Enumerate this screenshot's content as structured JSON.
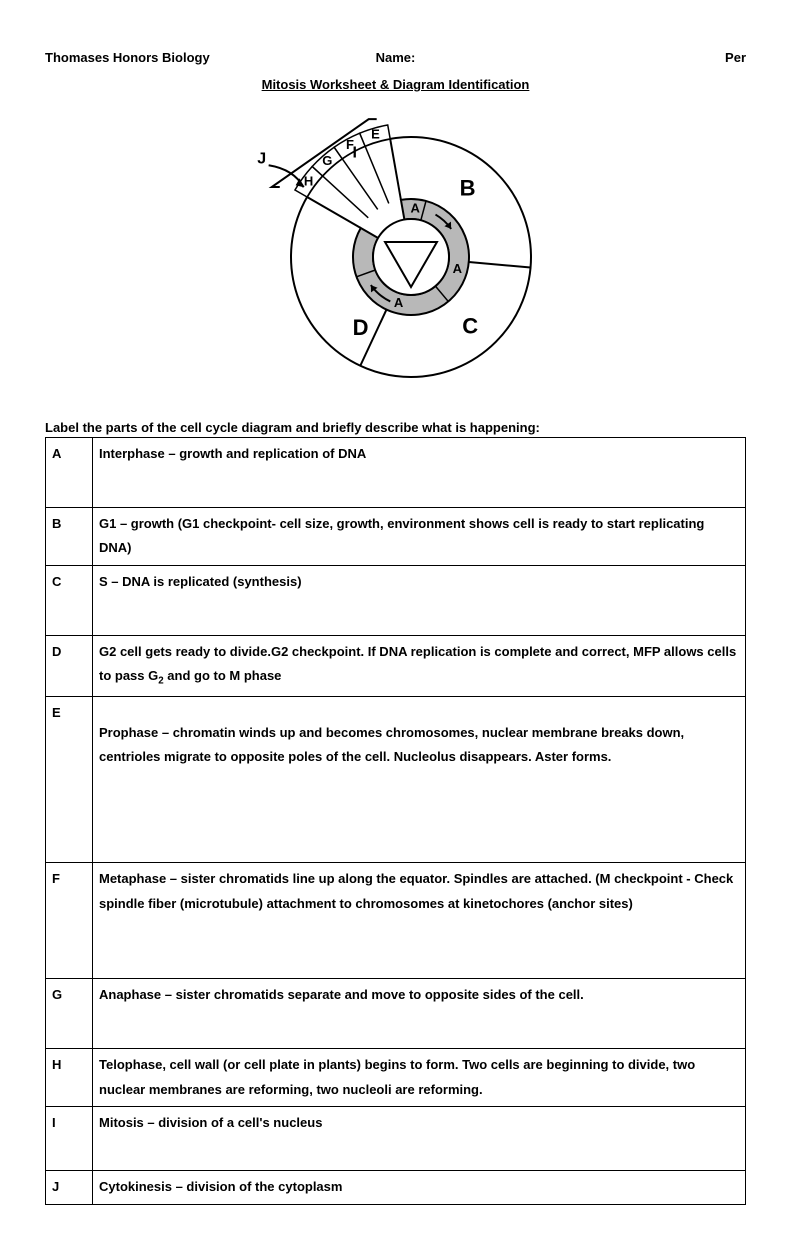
{
  "header": {
    "left": "Thomases Honors Biology",
    "center": "Name:",
    "right": "Per"
  },
  "title": "Mitosis Worksheet & Diagram Identification",
  "diagram": {
    "outer_labels": {
      "J": "J",
      "B": "B",
      "C": "C",
      "D": "D",
      "I": "I"
    },
    "inner_labels": {
      "H": "H",
      "G": "G",
      "F": "F",
      "E": "E"
    },
    "ring_labels": {
      "A1": "A",
      "A2": "A",
      "A3": "A"
    },
    "colors": {
      "stroke": "#000000",
      "ring_fill": "#b8b8b8",
      "background": "#ffffff"
    },
    "font_family": "Arial",
    "label_font_size_large": 22,
    "label_font_size_med": 16,
    "label_font_size_small": 13,
    "stroke_width": 2
  },
  "instruction": "Label the parts of the cell cycle diagram and briefly describe what is happening:",
  "rows": [
    {
      "letter": "A",
      "text": "Interphase – growth and replication of DNA"
    },
    {
      "letter": "B",
      "text": "G1 – growth (G1 checkpoint- cell size, growth, environment shows cell is ready to start replicating DNA)"
    },
    {
      "letter": "C",
      "text": "S – DNA is replicated (synthesis)"
    },
    {
      "letter": "D",
      "text": "G2 cell gets ready to divide.G2 checkpoint. If DNA replication is complete and correct, MFP  allows cells to pass G₂ and go to M phase"
    },
    {
      "letter": "E",
      "text": "Prophase – chromatin winds up and becomes chromosomes, nuclear membrane breaks down, centrioles migrate to opposite poles of the cell. Nucleolus disappears. Aster forms."
    },
    {
      "letter": "F",
      "text": "Metaphase – sister chromatids line up along the equator. Spindles are attached. (M checkpoint - Check spindle fiber (microtubule) attachment to chromosomes at kinetochores (anchor sites)"
    },
    {
      "letter": "G",
      "text": "Anaphase – sister chromatids separate and move to opposite sides of the cell."
    },
    {
      "letter": "H",
      "text": "Telophase, cell wall (or cell plate in plants) begins to form. Two cells are beginning to divide, two nuclear membranes are reforming, two nucleoli are reforming."
    },
    {
      "letter": "I",
      "text": "Mitosis – division of a cell's nucleus"
    },
    {
      "letter": "J",
      "text": "Cytokinesis – division of the cytoplasm"
    }
  ],
  "row_heights_extra": {
    "A": 36,
    "B": 0,
    "C": 36,
    "D": 0,
    "E": 88,
    "F": 58,
    "G": 36,
    "H": 0,
    "I": 30,
    "J": 0
  }
}
